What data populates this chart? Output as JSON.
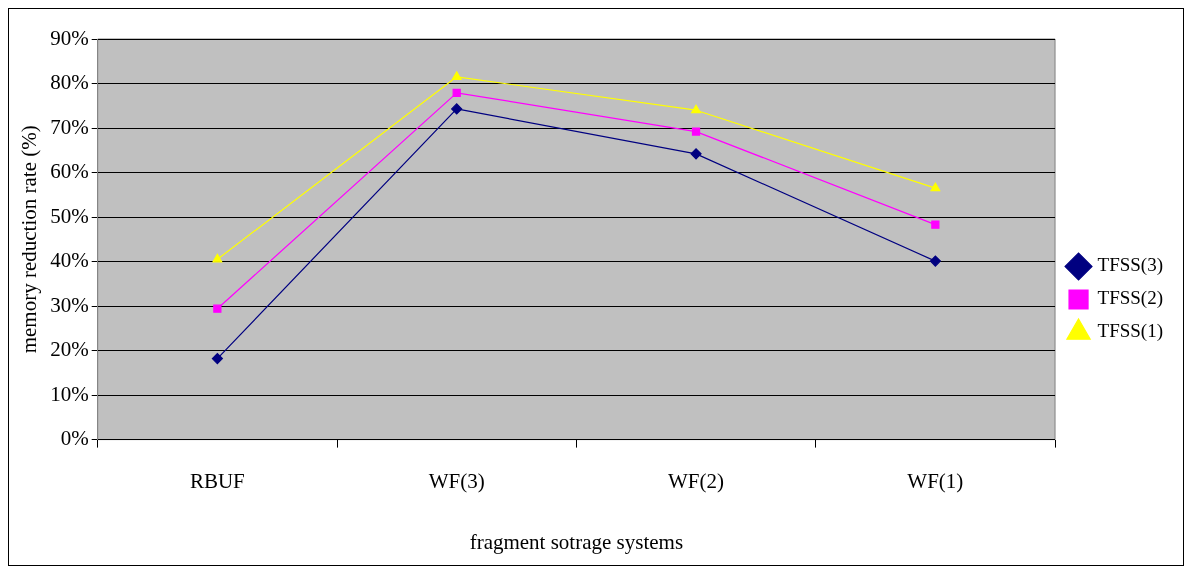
{
  "chart_data": {
    "type": "line",
    "xlabel": "fragment sotrage systems",
    "ylabel": "memory reduction rate (%)",
    "categories": [
      "RBUF",
      "WF(3)",
      "WF(2)",
      "WF(1)"
    ],
    "series": [
      {
        "name": "TFSS(3)",
        "color": "#000080",
        "marker": "diamond",
        "values": [
          18.2,
          74.3,
          64.2,
          40.1
        ]
      },
      {
        "name": "TFSS(2)",
        "color": "#ff00ff",
        "marker": "square",
        "values": [
          29.4,
          77.9,
          69.2,
          48.3
        ]
      },
      {
        "name": "TFSS(1)",
        "color": "#ffff00",
        "marker": "triangle",
        "values": [
          40.5,
          81.5,
          74.0,
          56.5
        ]
      }
    ],
    "ylim": [
      0,
      90
    ],
    "yticks": [
      {
        "value": 0,
        "label": "0%"
      },
      {
        "value": 10,
        "label": "10%"
      },
      {
        "value": 20,
        "label": "20%"
      },
      {
        "value": 30,
        "label": "30%"
      },
      {
        "value": 40,
        "label": "40%"
      },
      {
        "value": 50,
        "label": "50%"
      },
      {
        "value": 60,
        "label": "60%"
      },
      {
        "value": 70,
        "label": "70%"
      },
      {
        "value": 80,
        "label": "80%"
      },
      {
        "value": 90,
        "label": "90%"
      }
    ],
    "grid": "y",
    "legend": "right",
    "line_style": "solid"
  }
}
